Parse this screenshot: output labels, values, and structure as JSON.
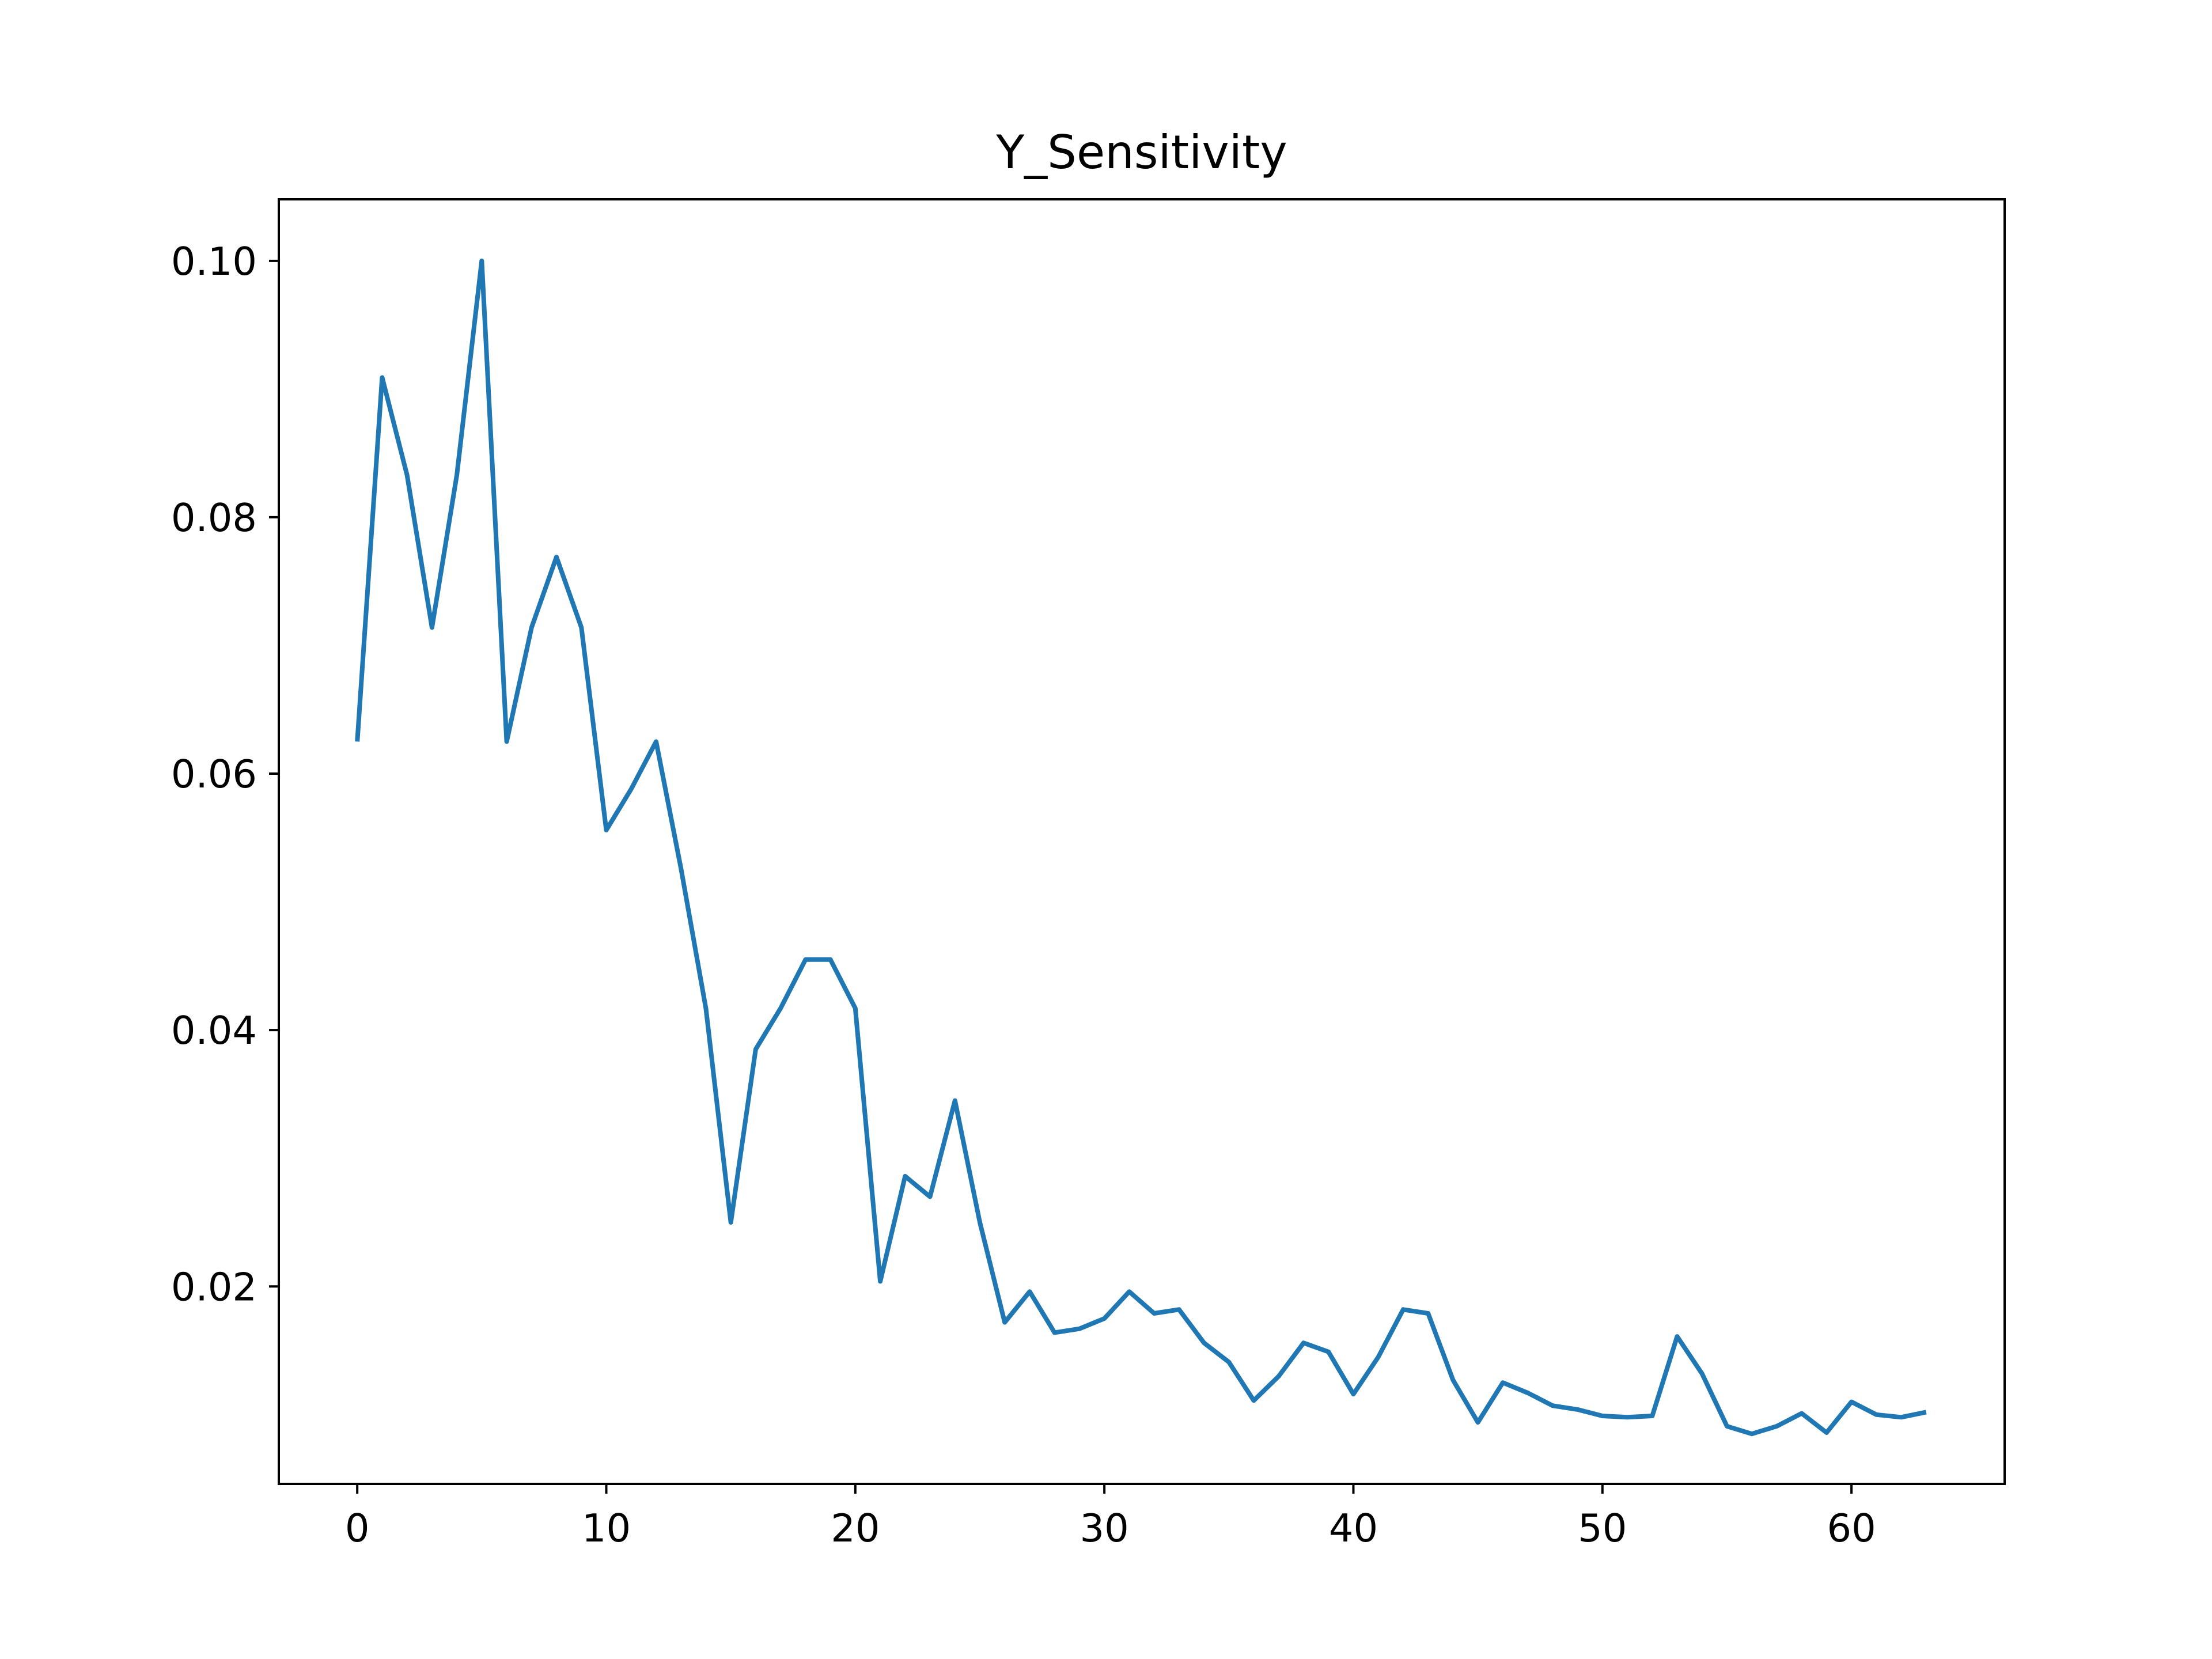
{
  "chart_data": {
    "type": "line",
    "title": "Y_Sensitivity",
    "xlabel": "",
    "ylabel": "",
    "xlim": [
      -3.15,
      66.15
    ],
    "ylim": [
      0.0046,
      0.1048
    ],
    "x_ticks": [
      0,
      10,
      20,
      30,
      40,
      50,
      60
    ],
    "x_tick_labels": [
      "0",
      "10",
      "20",
      "30",
      "40",
      "50",
      "60"
    ],
    "y_ticks": [
      0.02,
      0.04,
      0.06,
      0.08,
      0.1
    ],
    "y_tick_labels": [
      "0.02",
      "0.04",
      "0.06",
      "0.08",
      "0.10"
    ],
    "grid": false,
    "line_color": "#1f77b4",
    "series": [
      {
        "x": [
          0,
          1,
          2,
          3,
          4,
          5,
          6,
          7,
          8,
          9,
          10,
          11,
          12,
          13,
          14,
          15,
          16,
          17,
          18,
          19,
          20,
          21,
          22,
          23,
          24,
          25,
          26,
          27,
          28,
          29,
          30,
          31,
          32,
          33,
          34,
          35,
          36,
          37,
          38,
          39,
          40,
          41,
          42,
          43,
          44,
          45,
          46,
          47,
          48,
          49,
          50,
          51,
          52,
          53,
          54,
          55,
          56,
          57,
          58,
          59,
          60,
          61,
          62,
          63
        ],
        "values": [
          0.0625,
          0.0909,
          0.0833,
          0.0714,
          0.0833,
          0.1,
          0.0625,
          0.0714,
          0.0769,
          0.0714,
          0.0556,
          0.0588,
          0.0625,
          0.0526,
          0.0417,
          0.025,
          0.0385,
          0.0417,
          0.0455,
          0.0455,
          0.0417,
          0.0204,
          0.0286,
          0.027,
          0.0345,
          0.025,
          0.0172,
          0.0196,
          0.0164,
          0.0167,
          0.0175,
          0.0196,
          0.0179,
          0.0182,
          0.0156,
          0.0141,
          0.0111,
          0.013,
          0.0156,
          0.0149,
          0.0116,
          0.0145,
          0.0182,
          0.0179,
          0.0127,
          0.0094,
          0.0125,
          0.0117,
          0.0107,
          0.0104,
          0.0099,
          0.0098,
          0.0099,
          0.0161,
          0.0132,
          0.0091,
          0.0085,
          0.0091,
          0.0101,
          0.0086,
          0.011,
          0.01,
          0.0098,
          0.0102
        ]
      }
    ]
  }
}
